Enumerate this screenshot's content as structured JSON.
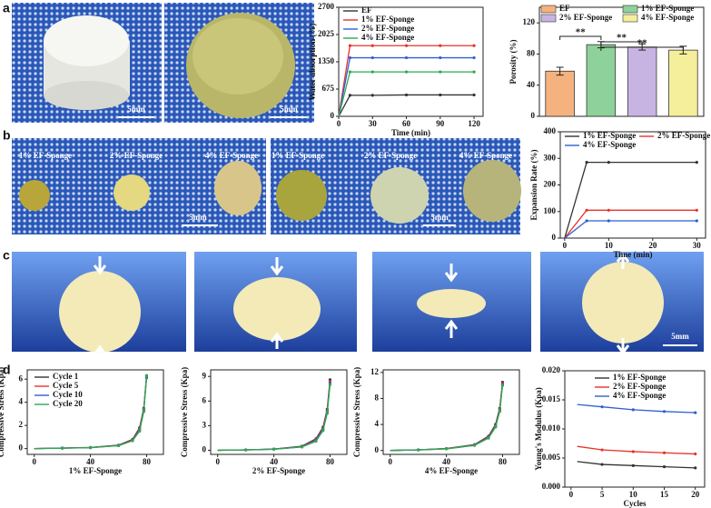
{
  "figure": {
    "panel_labels": [
      "a",
      "b",
      "c",
      "d"
    ],
    "photo_texts": [
      "5mm",
      "5mm",
      "1% EF-Sponge",
      "2% EF-Sponge",
      "4% EF-Sponge",
      "5mm",
      "1% EF-Sponge",
      "2% EF-Sponge",
      "4% EF-Sponge",
      "5mm",
      "5mm"
    ]
  },
  "chart_data": [
    {
      "type": "line",
      "xlabel": "Time (min)",
      "ylabel": "Water absorption (%)",
      "x": [
        0,
        10,
        30,
        60,
        90,
        120
      ],
      "xlim": [
        0,
        128
      ],
      "ylim": [
        0,
        2700
      ],
      "xticks": [
        0,
        30,
        60,
        90,
        120
      ],
      "yticks": [
        0,
        675,
        1350,
        2025,
        2700
      ],
      "legend": "upper left",
      "series": [
        {
          "name": "EF",
          "color": "#333333",
          "values": [
            0,
            520,
            520,
            530,
            530,
            530
          ]
        },
        {
          "name": "1% EF-Sponge",
          "color": "#e8322b",
          "values": [
            0,
            1750,
            1750,
            1750,
            1750,
            1750
          ]
        },
        {
          "name": "2% EF-Sponge",
          "color": "#2f5fd0",
          "values": [
            0,
            1450,
            1450,
            1450,
            1450,
            1450
          ]
        },
        {
          "name": "4% EF-Sponge",
          "color": "#2fa84f",
          "values": [
            0,
            1100,
            1100,
            1100,
            1100,
            1100
          ]
        }
      ]
    },
    {
      "type": "bar",
      "ylabel": "Porosity (%)",
      "ylim": [
        0,
        140
      ],
      "yticks": [
        0,
        40,
        80,
        120
      ],
      "legend": "upper center",
      "annotations": [
        "**",
        "**",
        "**"
      ],
      "series": [
        {
          "name": "EF",
          "color": "#f5b27e",
          "values": [
            58
          ],
          "errors": [
            5
          ]
        },
        {
          "name": "1% EF-Sponge",
          "color": "#8fd19a",
          "values": [
            92
          ],
          "errors": [
            4
          ]
        },
        {
          "name": "2% EF-Sponge",
          "color": "#c8b4e3",
          "values": [
            89
          ],
          "errors": [
            4
          ]
        },
        {
          "name": "4% EF-Sponge",
          "color": "#f5ee9a",
          "values": [
            85
          ],
          "errors": [
            5
          ]
        }
      ]
    },
    {
      "type": "line",
      "xlabel": "Time (min)",
      "ylabel": "Expansion Rate (%)",
      "x": [
        0,
        5,
        10,
        30
      ],
      "xlim": [
        -1,
        32
      ],
      "ylim": [
        0,
        400
      ],
      "xticks": [
        0,
        10,
        20,
        30
      ],
      "yticks": [
        0,
        100,
        200,
        300,
        400
      ],
      "legend": "upper center",
      "series": [
        {
          "name": "1% EF-Sponge",
          "color": "#333333",
          "values": [
            0,
            285,
            285,
            285
          ]
        },
        {
          "name": "2% EF-Sponge",
          "color": "#e8322b",
          "values": [
            0,
            105,
            105,
            105
          ]
        },
        {
          "name": "4% EF-Sponge",
          "color": "#2f5fd0",
          "values": [
            0,
            65,
            65,
            65
          ]
        }
      ]
    },
    {
      "type": "line",
      "xlabel": "1% EF-Sponge",
      "ylabel": "Compressive Stress (Kpa)",
      "x": [
        0,
        20,
        40,
        60,
        70,
        75,
        78,
        80
      ],
      "xlim": [
        -5,
        92
      ],
      "ylim": [
        -0.5,
        6.8
      ],
      "xticks": [
        0,
        40,
        80
      ],
      "yticks": [
        0,
        2,
        4,
        6
      ],
      "legend": "upper left",
      "series": [
        {
          "name": "Cycle 1",
          "color": "#333333",
          "values": [
            0,
            0.05,
            0.1,
            0.3,
            0.8,
            1.8,
            3.5,
            6.3
          ]
        },
        {
          "name": "Cycle 5",
          "color": "#e8322b",
          "values": [
            0,
            0.04,
            0.09,
            0.28,
            0.75,
            1.7,
            3.4,
            6.2
          ]
        },
        {
          "name": "Cycle 10",
          "color": "#2f5fd0",
          "values": [
            0,
            0.04,
            0.08,
            0.26,
            0.7,
            1.6,
            3.3,
            6.1
          ]
        },
        {
          "name": "Cycle 20",
          "color": "#2fa84f",
          "values": [
            0,
            0.03,
            0.08,
            0.25,
            0.68,
            1.5,
            3.2,
            6.3
          ]
        }
      ]
    },
    {
      "type": "line",
      "xlabel": "2% EF-Sponge",
      "ylabel": "Compressive Stress (Kpa)",
      "x": [
        0,
        20,
        40,
        60,
        70,
        75,
        78,
        80
      ],
      "xlim": [
        -5,
        92
      ],
      "ylim": [
        -0.5,
        9.8
      ],
      "xticks": [
        0,
        40,
        80
      ],
      "yticks": [
        0,
        3,
        6,
        9
      ],
      "series": [
        {
          "color": "#333333",
          "values": [
            0,
            0.05,
            0.15,
            0.5,
            1.4,
            2.8,
            5.0,
            8.6
          ]
        },
        {
          "color": "#e8322b",
          "values": [
            0,
            0.05,
            0.14,
            0.45,
            1.3,
            2.6,
            4.8,
            8.4
          ]
        },
        {
          "color": "#2f5fd0",
          "values": [
            0,
            0.04,
            0.13,
            0.42,
            1.2,
            2.5,
            4.6,
            8.2
          ]
        },
        {
          "color": "#2fa84f",
          "values": [
            0,
            0.04,
            0.12,
            0.4,
            1.1,
            2.4,
            4.5,
            8.0
          ]
        }
      ]
    },
    {
      "type": "line",
      "xlabel": "4% EF-Sponge",
      "ylabel": "Compressive Stress (Kpa)",
      "x": [
        0,
        20,
        40,
        60,
        70,
        75,
        78,
        80
      ],
      "xlim": [
        -5,
        92
      ],
      "ylim": [
        -0.6,
        12.4
      ],
      "xticks": [
        0,
        40,
        80
      ],
      "yticks": [
        0,
        4,
        8,
        12
      ],
      "series": [
        {
          "color": "#333333",
          "values": [
            0,
            0.1,
            0.3,
            0.9,
            2.2,
            4.0,
            6.5,
            10.5
          ]
        },
        {
          "color": "#e8322b",
          "values": [
            0,
            0.1,
            0.28,
            0.85,
            2.1,
            3.8,
            6.3,
            10.3
          ]
        },
        {
          "color": "#2f5fd0",
          "values": [
            0,
            0.09,
            0.26,
            0.8,
            2.0,
            3.7,
            6.1,
            10.1
          ]
        },
        {
          "color": "#2fa84f",
          "values": [
            0,
            0.08,
            0.25,
            0.78,
            1.9,
            3.6,
            6.0,
            10.0
          ]
        }
      ]
    },
    {
      "type": "line",
      "xlabel": "Cycles",
      "ylabel": "Young's Modulus (Kpa)",
      "x": [
        1,
        5,
        10,
        15,
        20
      ],
      "xlim": [
        -1,
        21.5
      ],
      "ylim": [
        0,
        0.02
      ],
      "xticks": [
        0,
        5,
        10,
        15,
        20
      ],
      "yticks": [
        {
          "value": 0,
          "label": "0.000"
        },
        {
          "value": 0.005,
          "label": "0.005"
        },
        {
          "value": 0.01,
          "label": "0.010"
        },
        {
          "value": 0.015,
          "label": "0.015"
        },
        {
          "value": 0.02,
          "label": "0.020"
        }
      ],
      "legend": "upper center",
      "series": [
        {
          "name": "1% EF-Sponge",
          "color": "#333333",
          "values": [
            0.0044,
            0.0039,
            0.0037,
            0.0035,
            0.0033
          ]
        },
        {
          "name": "2% EF-Sponge",
          "color": "#e8322b",
          "values": [
            0.007,
            0.0064,
            0.0061,
            0.0059,
            0.0057
          ]
        },
        {
          "name": "4% EF-Sponge",
          "color": "#2f5fd0",
          "values": [
            0.0142,
            0.0138,
            0.0133,
            0.013,
            0.0128
          ]
        }
      ]
    }
  ]
}
